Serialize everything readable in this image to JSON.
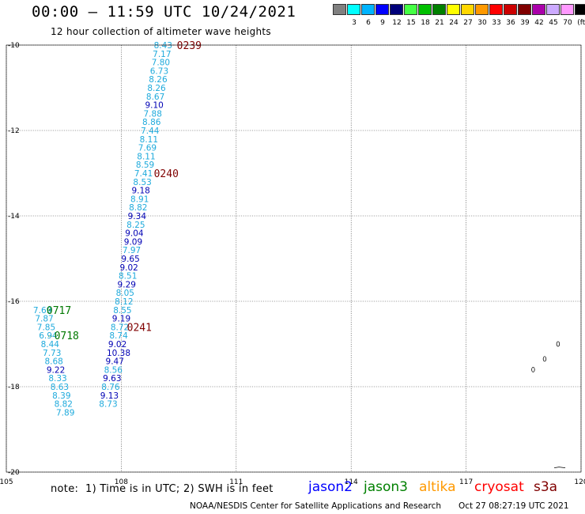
{
  "header": {
    "title": "00:00 – 11:59 UTC 10/24/2021",
    "subtitle": "12 hour collection of altimeter wave heights"
  },
  "legend": {
    "unit": "(ft)",
    "items": [
      {
        "label": "",
        "color": "#808080"
      },
      {
        "label": "3",
        "color": "#00ffff"
      },
      {
        "label": "6",
        "color": "#00b4ff"
      },
      {
        "label": "9",
        "color": "#0000ff"
      },
      {
        "label": "12",
        "color": "#00007a"
      },
      {
        "label": "15",
        "color": "#44ff44"
      },
      {
        "label": "18",
        "color": "#00c000"
      },
      {
        "label": "21",
        "color": "#008000"
      },
      {
        "label": "24",
        "color": "#ffff00"
      },
      {
        "label": "27",
        "color": "#ffd700"
      },
      {
        "label": "30",
        "color": "#ff9900"
      },
      {
        "label": "33",
        "color": "#ff0000"
      },
      {
        "label": "36",
        "color": "#cc0000"
      },
      {
        "label": "39",
        "color": "#800000"
      },
      {
        "label": "42",
        "color": "#aa00aa"
      },
      {
        "label": "45",
        "color": "#ccaaff"
      },
      {
        "label": "70",
        "color": "#ff99ff"
      },
      {
        "label": "",
        "color": "#000000"
      }
    ]
  },
  "map": {
    "lon_range": [
      105,
      120
    ],
    "lat_range": [
      -20,
      -10
    ],
    "lon_ticks": [
      "105",
      "108",
      "111",
      "114",
      "117",
      "120"
    ],
    "lat_ticks": [
      "-10",
      "-12",
      "-14",
      "-16",
      "-18",
      "-20"
    ],
    "colors": {
      "light": "#1eaadc",
      "dark": "#0000b4",
      "time": "#800000",
      "time_j3": "#007800"
    },
    "track_main": [
      {
        "v": "8.43",
        "lon": 108.85,
        "lat": -10.0,
        "c": "light"
      },
      {
        "v": "7.17",
        "lon": 108.82,
        "lat": -10.2,
        "c": "light"
      },
      {
        "v": "7.80",
        "lon": 108.79,
        "lat": -10.4,
        "c": "light"
      },
      {
        "v": "6.73",
        "lon": 108.75,
        "lat": -10.6,
        "c": "light"
      },
      {
        "v": "8.26",
        "lon": 108.72,
        "lat": -10.8,
        "c": "light"
      },
      {
        "v": "8.26",
        "lon": 108.68,
        "lat": -11.0,
        "c": "light"
      },
      {
        "v": "8.67",
        "lon": 108.65,
        "lat": -11.2,
        "c": "light"
      },
      {
        "v": "9.10",
        "lon": 108.62,
        "lat": -11.4,
        "c": "dark"
      },
      {
        "v": "7.88",
        "lon": 108.58,
        "lat": -11.6,
        "c": "light"
      },
      {
        "v": "8.86",
        "lon": 108.55,
        "lat": -11.8,
        "c": "light"
      },
      {
        "v": "7.44",
        "lon": 108.51,
        "lat": -12.0,
        "c": "light"
      },
      {
        "v": "8.11",
        "lon": 108.48,
        "lat": -12.2,
        "c": "light"
      },
      {
        "v": "7.69",
        "lon": 108.44,
        "lat": -12.4,
        "c": "light"
      },
      {
        "v": "8.11",
        "lon": 108.41,
        "lat": -12.6,
        "c": "light"
      },
      {
        "v": "8.59",
        "lon": 108.38,
        "lat": -12.8,
        "c": "light"
      },
      {
        "v": "7.41",
        "lon": 108.34,
        "lat": -13.0,
        "c": "light"
      },
      {
        "v": "8.53",
        "lon": 108.31,
        "lat": -13.2,
        "c": "light"
      },
      {
        "v": "9.18",
        "lon": 108.27,
        "lat": -13.4,
        "c": "dark"
      },
      {
        "v": "8.91",
        "lon": 108.24,
        "lat": -13.6,
        "c": "light"
      },
      {
        "v": "8.82",
        "lon": 108.2,
        "lat": -13.8,
        "c": "light"
      },
      {
        "v": "9.34",
        "lon": 108.17,
        "lat": -14.0,
        "c": "dark"
      },
      {
        "v": "8.25",
        "lon": 108.14,
        "lat": -14.2,
        "c": "light"
      },
      {
        "v": "9.04",
        "lon": 108.1,
        "lat": -14.4,
        "c": "dark"
      },
      {
        "v": "9.09",
        "lon": 108.07,
        "lat": -14.6,
        "c": "dark"
      },
      {
        "v": "7.97",
        "lon": 108.03,
        "lat": -14.8,
        "c": "light"
      },
      {
        "v": "9.65",
        "lon": 108.0,
        "lat": -15.0,
        "c": "dark"
      },
      {
        "v": "9.02",
        "lon": 107.96,
        "lat": -15.2,
        "c": "dark"
      },
      {
        "v": "8.51",
        "lon": 107.93,
        "lat": -15.4,
        "c": "light"
      },
      {
        "v": "9.29",
        "lon": 107.9,
        "lat": -15.6,
        "c": "dark"
      },
      {
        "v": "8.05",
        "lon": 107.86,
        "lat": -15.8,
        "c": "light"
      },
      {
        "v": "8.12",
        "lon": 107.83,
        "lat": -16.0,
        "c": "light"
      },
      {
        "v": "8.55",
        "lon": 107.79,
        "lat": -16.2,
        "c": "light"
      },
      {
        "v": "9.19",
        "lon": 107.76,
        "lat": -16.4,
        "c": "dark"
      },
      {
        "v": "8.72",
        "lon": 107.72,
        "lat": -16.6,
        "c": "light"
      },
      {
        "v": "8.74",
        "lon": 107.69,
        "lat": -16.8,
        "c": "light"
      },
      {
        "v": "9.02",
        "lon": 107.66,
        "lat": -17.0,
        "c": "dark"
      },
      {
        "v": "10.38",
        "lon": 107.62,
        "lat": -17.2,
        "c": "dark"
      },
      {
        "v": "9.47",
        "lon": 107.59,
        "lat": -17.4,
        "c": "dark"
      },
      {
        "v": "8.56",
        "lon": 107.55,
        "lat": -17.6,
        "c": "light"
      },
      {
        "v": "9.63",
        "lon": 107.52,
        "lat": -17.8,
        "c": "dark"
      },
      {
        "v": "8.76",
        "lon": 107.48,
        "lat": -18.0,
        "c": "light"
      },
      {
        "v": "9.13",
        "lon": 107.45,
        "lat": -18.2,
        "c": "dark"
      },
      {
        "v": "8.73",
        "lon": 107.42,
        "lat": -18.4,
        "c": "light"
      }
    ],
    "track_left": [
      {
        "v": "7.69",
        "lon": 105.7,
        "lat": -16.2,
        "c": "light"
      },
      {
        "v": "7.87",
        "lon": 105.75,
        "lat": -16.4,
        "c": "light"
      },
      {
        "v": "7.85",
        "lon": 105.8,
        "lat": -16.6,
        "c": "light"
      },
      {
        "v": "6.94",
        "lon": 105.85,
        "lat": -16.8,
        "c": "light"
      },
      {
        "v": "8.44",
        "lon": 105.9,
        "lat": -17.0,
        "c": "light"
      },
      {
        "v": "7.73",
        "lon": 105.95,
        "lat": -17.2,
        "c": "light"
      },
      {
        "v": "8.68",
        "lon": 106.0,
        "lat": -17.4,
        "c": "light"
      },
      {
        "v": "9.22",
        "lon": 106.05,
        "lat": -17.6,
        "c": "dark"
      },
      {
        "v": "8.33",
        "lon": 106.1,
        "lat": -17.8,
        "c": "light"
      },
      {
        "v": "8.63",
        "lon": 106.15,
        "lat": -18.0,
        "c": "light"
      },
      {
        "v": "8.39",
        "lon": 106.2,
        "lat": -18.2,
        "c": "light"
      },
      {
        "v": "8.82",
        "lon": 106.25,
        "lat": -18.4,
        "c": "light"
      },
      {
        "v": "7.89",
        "lon": 106.3,
        "lat": -18.6,
        "c": "light"
      }
    ],
    "time_labels": [
      {
        "text": "0239",
        "lon": 109.45,
        "lat": -10.0,
        "c": "time"
      },
      {
        "text": "0240",
        "lon": 108.85,
        "lat": -13.0,
        "c": "time"
      },
      {
        "text": "0241",
        "lon": 108.15,
        "lat": -16.6,
        "c": "time"
      },
      {
        "text": "0717",
        "lon": 106.05,
        "lat": -16.2,
        "c": "time_j3"
      },
      {
        "text": "0718",
        "lon": 106.25,
        "lat": -16.8,
        "c": "time_j3"
      }
    ]
  },
  "footer": {
    "note": "note:  1) Time is in UTC; 2) SWH is in feet",
    "satellites": [
      {
        "label": "jason2",
        "color": "#0000ff"
      },
      {
        "label": "jason3",
        "color": "#008000"
      },
      {
        "label": "altika",
        "color": "#ff9900"
      },
      {
        "label": "cryosat",
        "color": "#ff0000"
      },
      {
        "label": "s3a",
        "color": "#800000"
      }
    ],
    "credit": "NOAA/NESDIS Center for Satellite Applications and Research",
    "timestamp": "Oct 27 08:27:19 UTC 2021"
  }
}
